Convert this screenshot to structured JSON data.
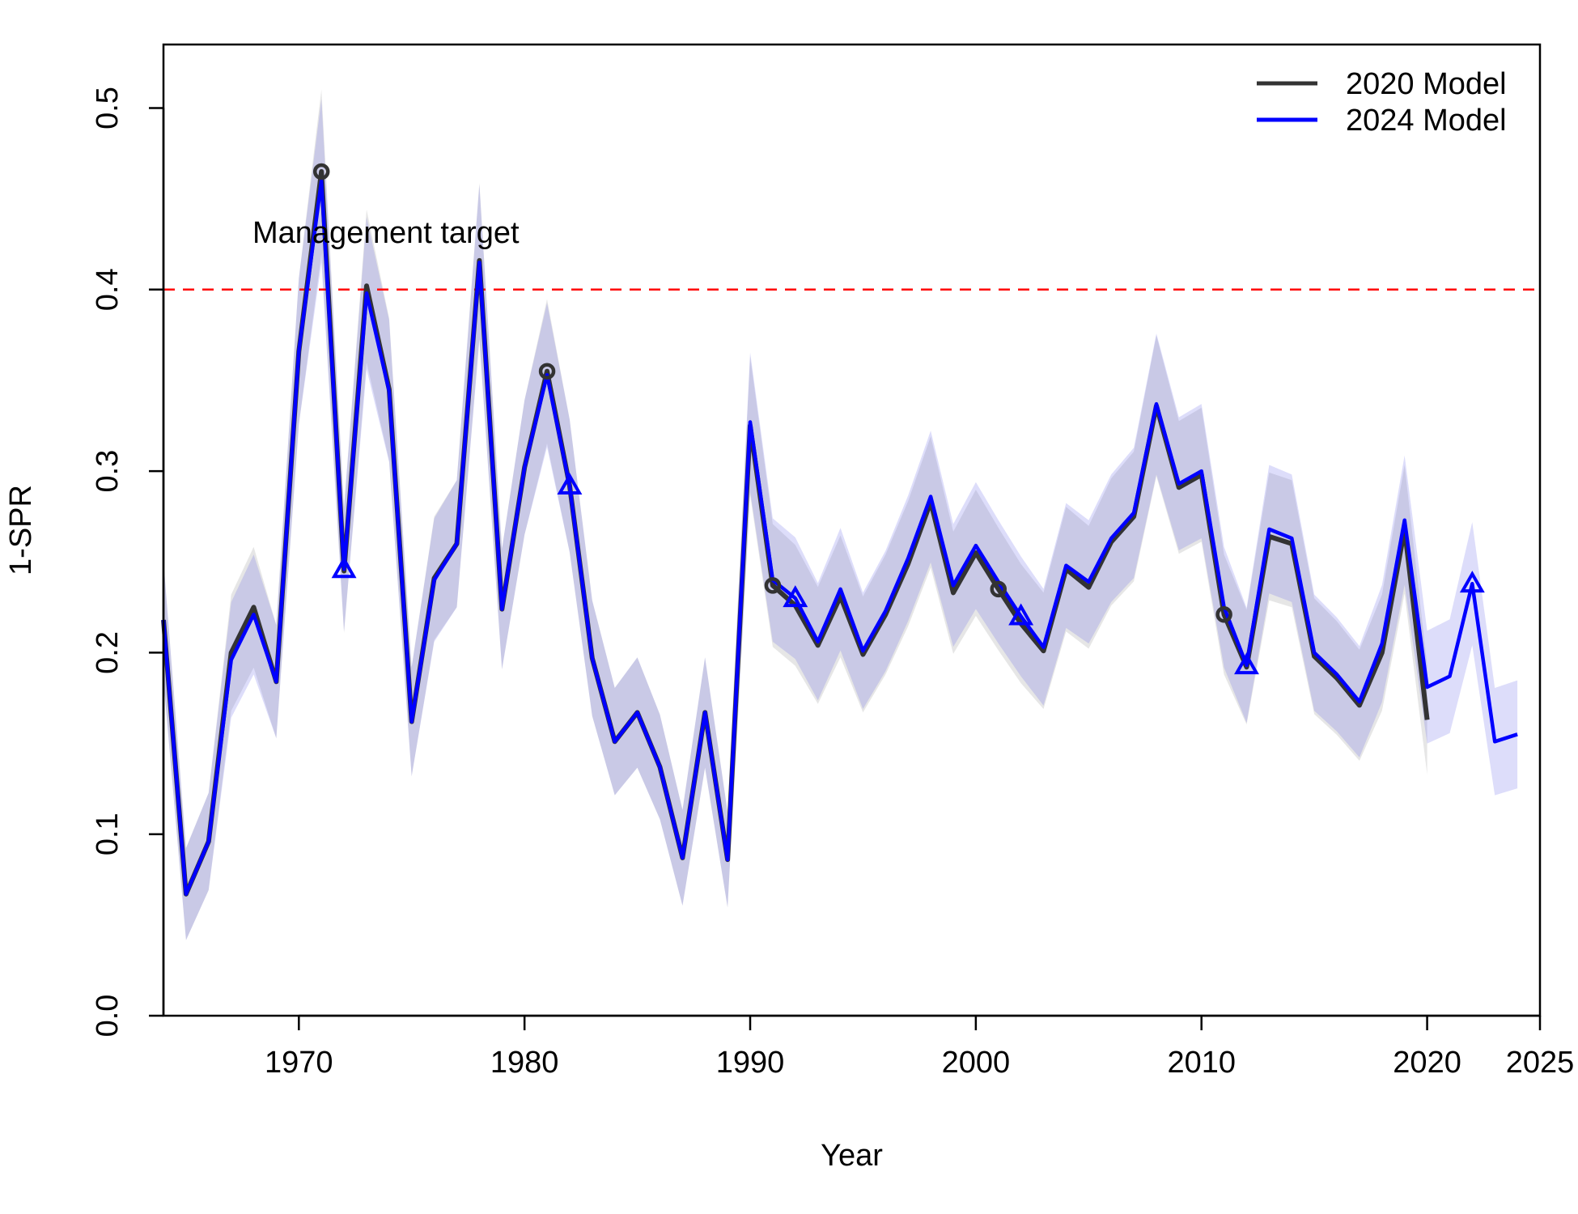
{
  "chart_data": {
    "type": "line",
    "title": "",
    "xlabel": "Year",
    "ylabel": "1-SPR",
    "xlim": [
      1964,
      2025
    ],
    "ylim": [
      0,
      0.535
    ],
    "x_ticks": [
      1970,
      1980,
      1990,
      2000,
      2010,
      2020,
      2025
    ],
    "y_ticks": [
      0.0,
      0.1,
      0.2,
      0.3,
      0.4,
      0.5
    ],
    "y_tick_labels": [
      "0.0",
      "0.1",
      "0.2",
      "0.3",
      "0.4",
      "0.5"
    ],
    "grid": false,
    "legend_position": "top-right",
    "reference_line": {
      "y": 0.4,
      "label": "Management target",
      "color": "#ff0000",
      "style": "dashed"
    },
    "series": [
      {
        "name": "2020 Model",
        "color": "#333333",
        "marker": "circle",
        "marker_years": [
          1971,
          1981,
          1991,
          2001,
          2011
        ],
        "x": [
          1964,
          1965,
          1966,
          1967,
          1968,
          1969,
          1970,
          1971,
          1972,
          1973,
          1974,
          1975,
          1976,
          1977,
          1978,
          1979,
          1980,
          1981,
          1982,
          1983,
          1984,
          1985,
          1986,
          1987,
          1988,
          1989,
          1990,
          1991,
          1992,
          1993,
          1994,
          1995,
          1996,
          1997,
          1998,
          1999,
          2000,
          2001,
          2002,
          2003,
          2004,
          2005,
          2006,
          2007,
          2008,
          2009,
          2010,
          2011,
          2012,
          2013,
          2014,
          2015,
          2016,
          2017,
          2018,
          2019,
          2020
        ],
        "y": [
          0.218,
          0.067,
          0.096,
          0.2,
          0.225,
          0.184,
          0.366,
          0.465,
          0.245,
          0.402,
          0.345,
          0.162,
          0.241,
          0.26,
          0.416,
          0.224,
          0.302,
          0.355,
          0.292,
          0.197,
          0.151,
          0.167,
          0.137,
          0.087,
          0.167,
          0.086,
          0.325,
          0.237,
          0.226,
          0.204,
          0.231,
          0.199,
          0.221,
          0.249,
          0.283,
          0.233,
          0.255,
          0.235,
          0.216,
          0.201,
          0.246,
          0.236,
          0.261,
          0.275,
          0.336,
          0.291,
          0.298,
          0.221,
          0.192,
          0.264,
          0.26,
          0.198,
          0.186,
          0.171,
          0.2,
          0.268,
          0.163
        ]
      },
      {
        "name": "2024 Model",
        "color": "#0000ff",
        "marker": "triangle",
        "marker_years": [
          1972,
          1982,
          1992,
          2002,
          2012,
          2022
        ],
        "x": [
          1964,
          1965,
          1966,
          1967,
          1968,
          1969,
          1970,
          1971,
          1972,
          1973,
          1974,
          1975,
          1976,
          1977,
          1978,
          1979,
          1980,
          1981,
          1982,
          1983,
          1984,
          1985,
          1986,
          1987,
          1988,
          1989,
          1990,
          1991,
          1992,
          1993,
          1994,
          1995,
          1996,
          1997,
          1998,
          1999,
          2000,
          2001,
          2002,
          2003,
          2004,
          2005,
          2006,
          2007,
          2008,
          2009,
          2010,
          2011,
          2012,
          2013,
          2014,
          2015,
          2016,
          2017,
          2018,
          2019,
          2020,
          2021,
          2022,
          2023,
          2024
        ],
        "y": [
          0.218,
          0.067,
          0.096,
          0.196,
          0.221,
          0.184,
          0.366,
          0.46,
          0.246,
          0.398,
          0.344,
          0.162,
          0.24,
          0.26,
          0.415,
          0.224,
          0.302,
          0.353,
          0.292,
          0.197,
          0.151,
          0.167,
          0.137,
          0.087,
          0.167,
          0.086,
          0.327,
          0.24,
          0.23,
          0.206,
          0.235,
          0.201,
          0.223,
          0.252,
          0.286,
          0.237,
          0.259,
          0.239,
          0.22,
          0.203,
          0.248,
          0.239,
          0.263,
          0.277,
          0.337,
          0.293,
          0.3,
          0.225,
          0.193,
          0.268,
          0.263,
          0.2,
          0.188,
          0.173,
          0.205,
          0.273,
          0.181,
          0.187,
          0.238,
          0.151,
          0.155
        ]
      }
    ]
  }
}
